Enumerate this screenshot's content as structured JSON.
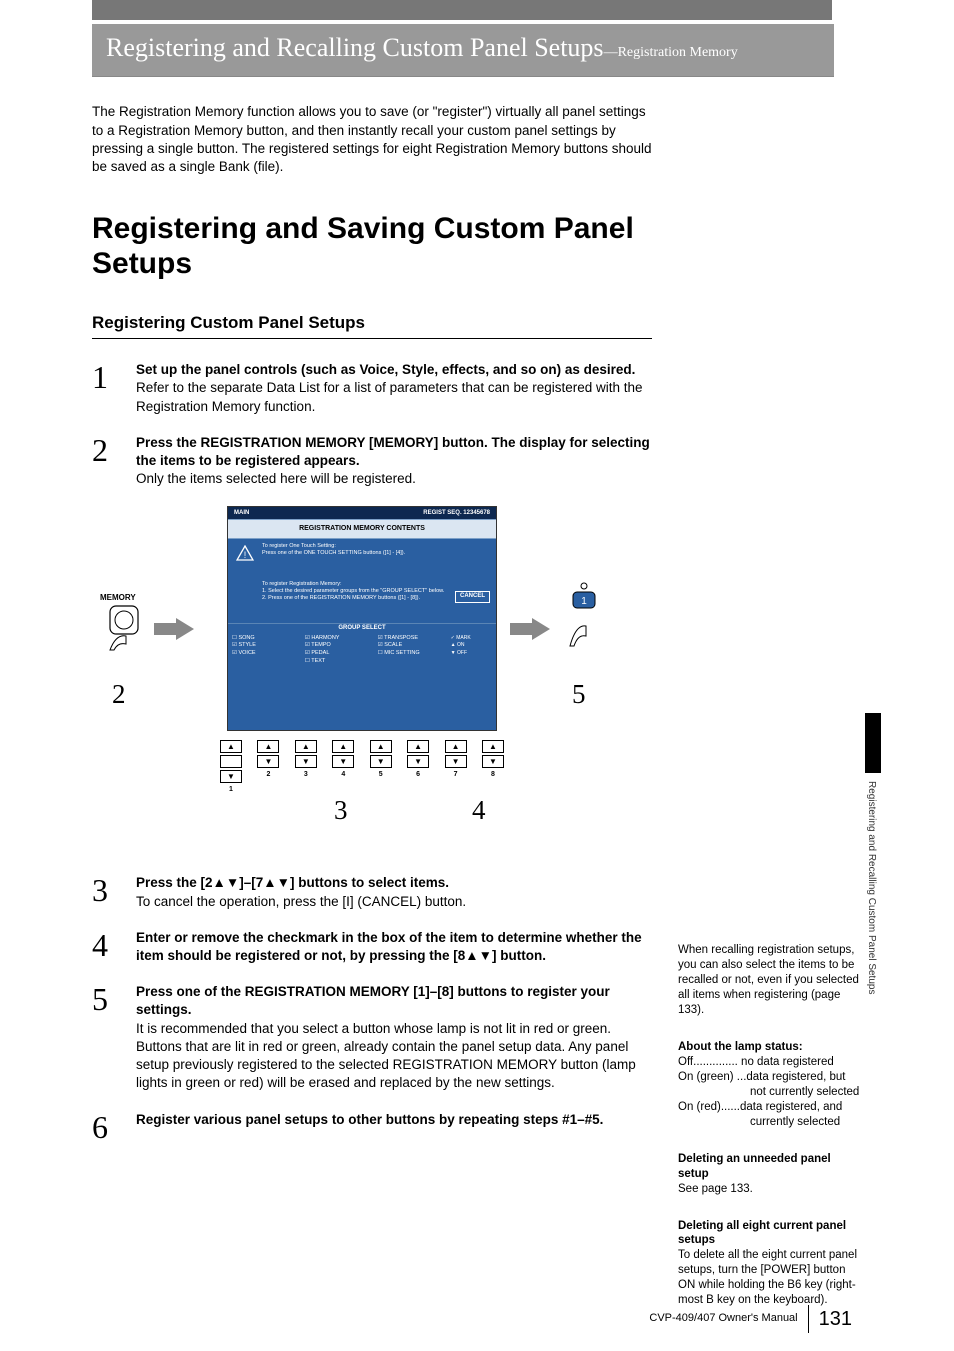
{
  "chapter": {
    "title": "Registering and Recalling Custom Panel Setups",
    "suffix": "—Registration Memory"
  },
  "intro": "The Registration Memory function allows you to save (or \"register\") virtually all panel settings to a Registration Memory button, and then instantly recall your custom panel settings by pressing a single button. The registered settings for eight Registration Memory buttons should be saved as a single Bank (file).",
  "h1": "Registering and Saving Custom Panel Setups",
  "h2": "Registering Custom Panel Setups",
  "steps": [
    {
      "num": "1",
      "lead": "Set up the panel controls (such as Voice, Style, effects, and so on) as desired.",
      "detail": "Refer to the separate Data List for a list of parameters that can be registered with the Registration Memory function."
    },
    {
      "num": "2",
      "lead": "Press the REGISTRATION MEMORY [MEMORY] button. The display for selecting the items to be registered appears.",
      "detail": "Only the items selected here will be registered."
    }
  ],
  "diagram": {
    "memory_label": "MEMORY",
    "callouts": {
      "c2": "2",
      "c3": "3",
      "c4": "4",
      "c5": "5"
    },
    "screen": {
      "topbar_left": "MAIN",
      "topbar_right": "REGIST SEQ. 12345678",
      "contents_title": "REGISTRATION MEMORY CONTENTS",
      "sec1": "To register One Touch Setting:\nPress one of the ONE TOUCH SETTING buttons ([1] - [4]).",
      "sec2": "To register Registration Memory:\n1. Select the desired parameter groups from the \"GROUP SELECT\" below.\n2. Press one of the REGISTRATION MEMORY buttons ([1] - [8]).",
      "cancel": "CANCEL",
      "group_select": "GROUP SELECT",
      "checks": {
        "col1": [
          "SONG",
          "STYLE",
          "VOICE"
        ],
        "col2": [
          "HARMONY",
          "TEMPO",
          "PEDAL",
          "TEXT"
        ],
        "col3": [
          "TRANSPOSE",
          "SCALE",
          "MIC SETTING"
        ],
        "marks": [
          "✓ MARK",
          "▲ ON",
          "▼ OFF"
        ]
      }
    },
    "button_numbers": [
      "1",
      "2",
      "3",
      "4",
      "5",
      "6",
      "7",
      "8"
    ]
  },
  "steps2": [
    {
      "num": "3",
      "lead": "Press the [2▲▼]–[7▲▼] buttons to select items.",
      "detail": "To cancel the operation, press the [I] (CANCEL) button."
    },
    {
      "num": "4",
      "lead": "Enter or remove the checkmark in the box of the item to determine whether the item should be registered or not, by pressing the [8▲▼] button.",
      "detail": ""
    },
    {
      "num": "5",
      "lead": "Press one of the REGISTRATION MEMORY [1]–[8] buttons to register your settings.",
      "detail": "It is recommended that you select a button whose lamp is not lit in red or green. Buttons that are lit in red or green, already contain the panel setup data. Any panel setup previously registered to the selected REGISTRATION MEMORY button (lamp lights in green or red) will be erased and replaced by the new settings."
    },
    {
      "num": "6",
      "lead": "Register various panel setups to other buttons by repeating steps #1–#5.",
      "detail": ""
    }
  ],
  "sidebar": {
    "note1": "When recalling registration setups, you can also select the items to be recalled or not, even if you selected all items when registering (page 133).",
    "status_title": "About the lamp status:",
    "status_off": "Off.............. no data registered",
    "status_green1": "On (green) ...data registered, but",
    "status_green2": "not currently selected",
    "status_red1": "On (red)......data registered, and",
    "status_red2": "currently selected",
    "del_title": "Deleting an unneeded panel setup",
    "del_text": "See page 133.",
    "delall_title": "Deleting all eight current panel setups",
    "delall_text": "To delete all the eight current panel setups, turn the [POWER] button ON while holding the B6 key (right-most B key on the keyboard).",
    "tab_text": "Registering and Recalling Custom Panel Setups"
  },
  "footer": {
    "manual": "CVP-409/407 Owner's Manual",
    "page": "131"
  },
  "colors": {
    "screen_bg": "#2a5fa1",
    "topbar_bg": "#0d2850",
    "header_bg": "#999999",
    "arrow": "#888888"
  }
}
